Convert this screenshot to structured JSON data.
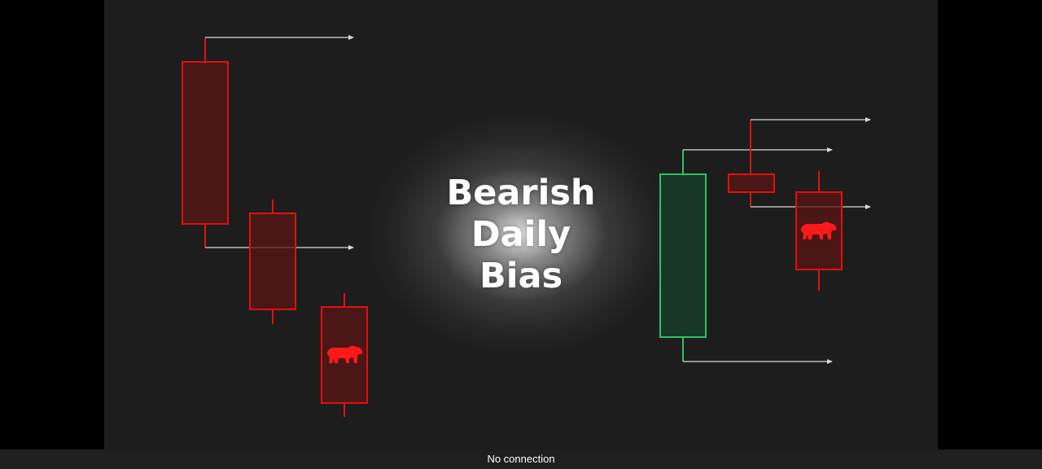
{
  "thumbnail": {
    "title_lines": [
      "Bearish",
      "Daily",
      "Bias"
    ],
    "bear_icon": "bear-icon",
    "colors": {
      "bearish": "#e01010",
      "bearish_fill": "#5a1414",
      "bullish": "#2fbf6a",
      "bullish_fill": "#173f27",
      "arrow": "#d8d8d8"
    }
  },
  "status_bar": {
    "text": "No connection"
  }
}
